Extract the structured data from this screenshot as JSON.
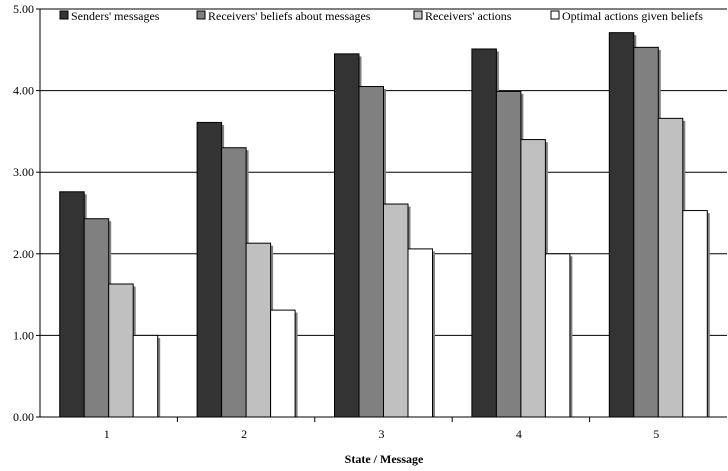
{
  "chart_data": {
    "type": "bar",
    "categories": [
      "1",
      "2",
      "3",
      "4",
      "5"
    ],
    "series": [
      {
        "name": "Senders' messages",
        "color": "#333333",
        "values": [
          2.76,
          3.61,
          4.45,
          4.51,
          4.71
        ]
      },
      {
        "name": "Receivers' beliefs about messages",
        "color": "#808080",
        "values": [
          2.43,
          3.3,
          4.05,
          3.99,
          4.53
        ]
      },
      {
        "name": "Receivers' actions",
        "color": "#c0c0c0",
        "values": [
          1.63,
          2.13,
          2.61,
          3.4,
          3.66
        ]
      },
      {
        "name": "Optimal actions given beliefs",
        "color": "#ffffff",
        "values": [
          1.0,
          1.31,
          2.06,
          2.0,
          2.53
        ]
      }
    ],
    "xlabel": "State / Message",
    "ylabel": "",
    "ylim": [
      0,
      5
    ],
    "yticks": [
      "0.00",
      "1.00",
      "2.00",
      "3.00",
      "4.00",
      "5.00"
    ],
    "grid": true,
    "legend_position": "top"
  }
}
